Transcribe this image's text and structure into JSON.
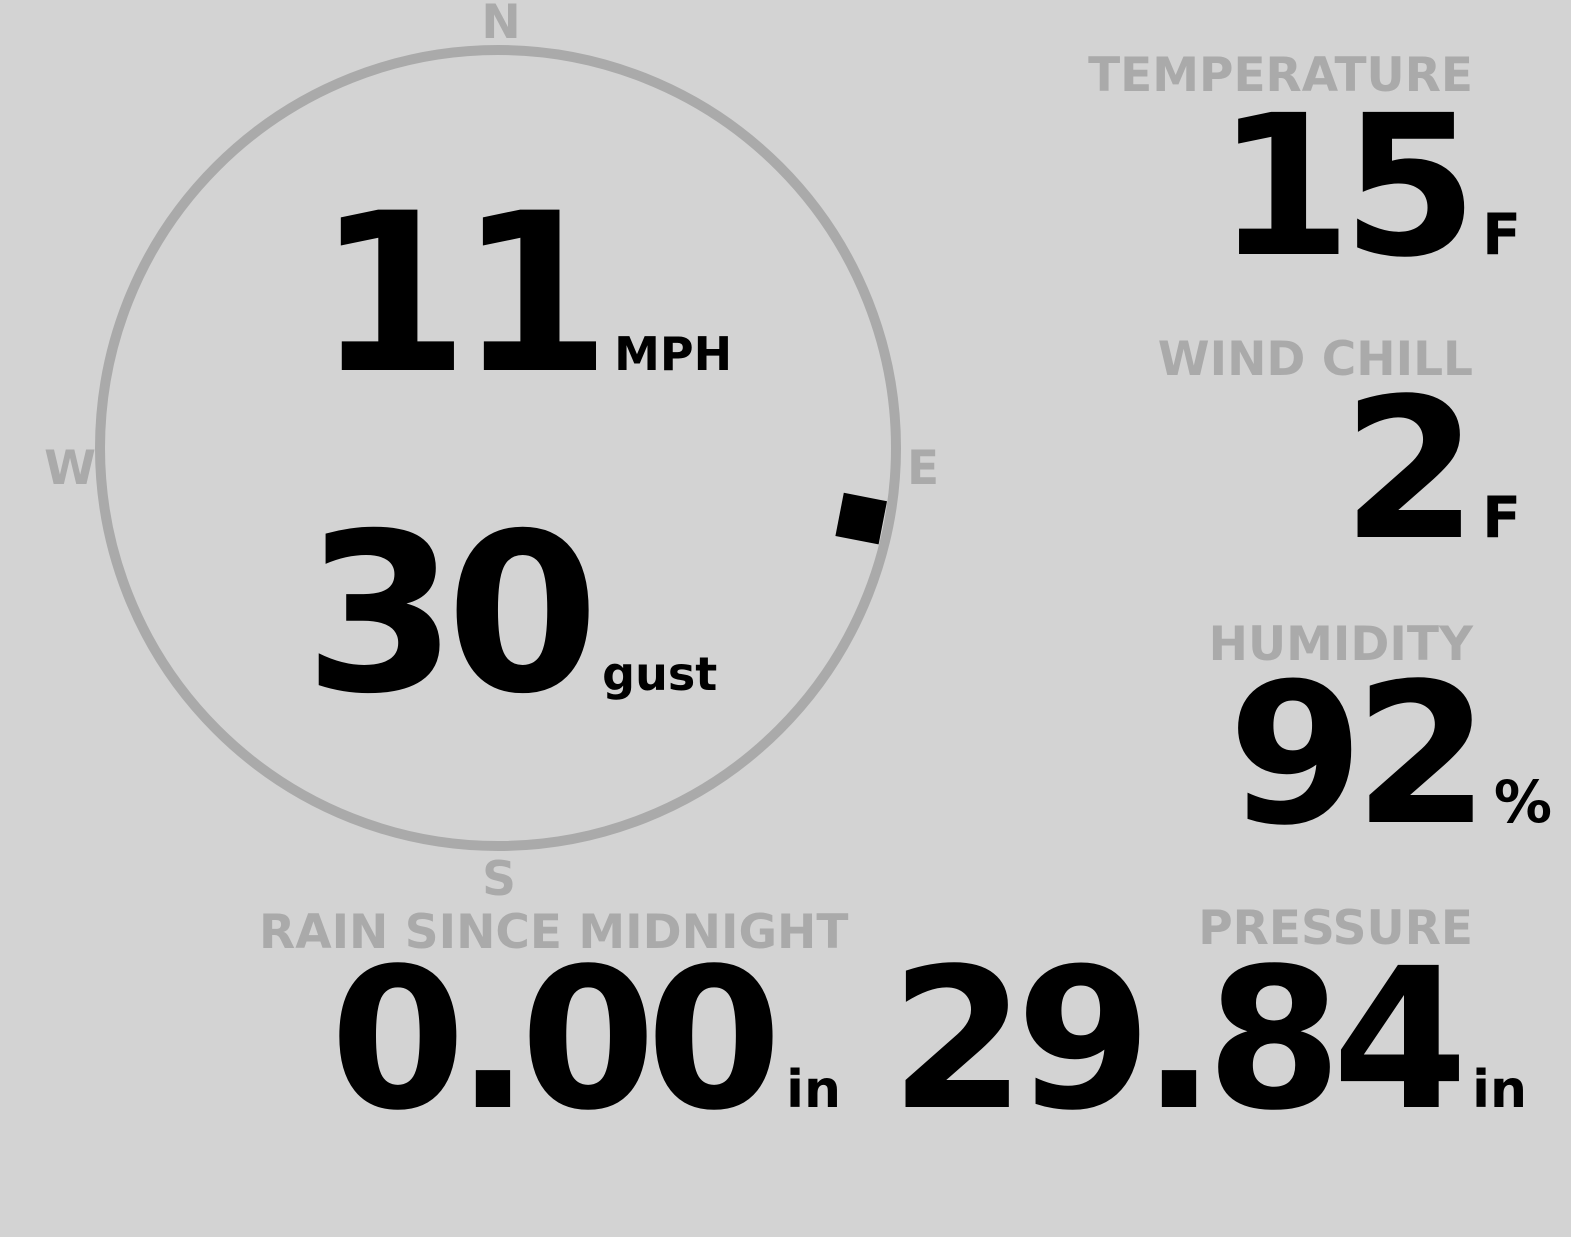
{
  "colors": {
    "background": "#d3d3d3",
    "label": "#aaaaaa",
    "value": "#000000",
    "dial": "#aaaaaa"
  },
  "compass": {
    "north": "N",
    "south": "S",
    "east": "E",
    "west": "W",
    "wind_direction_deg": 101
  },
  "wind": {
    "speed": "11",
    "speed_unit": "MPH",
    "gust": "30",
    "gust_unit": "gust"
  },
  "temperature": {
    "label": "TEMPERATURE",
    "value": "15",
    "unit": "F"
  },
  "wind_chill": {
    "label": "WIND CHILL",
    "value": "2",
    "unit": "F"
  },
  "humidity": {
    "label": "HUMIDITY",
    "value": "92",
    "unit": "%"
  },
  "rain": {
    "label": "RAIN SINCE MIDNIGHT",
    "value": "0.00",
    "unit": "in"
  },
  "pressure": {
    "label": "PRESSURE",
    "value": "29.84",
    "unit": "in"
  }
}
